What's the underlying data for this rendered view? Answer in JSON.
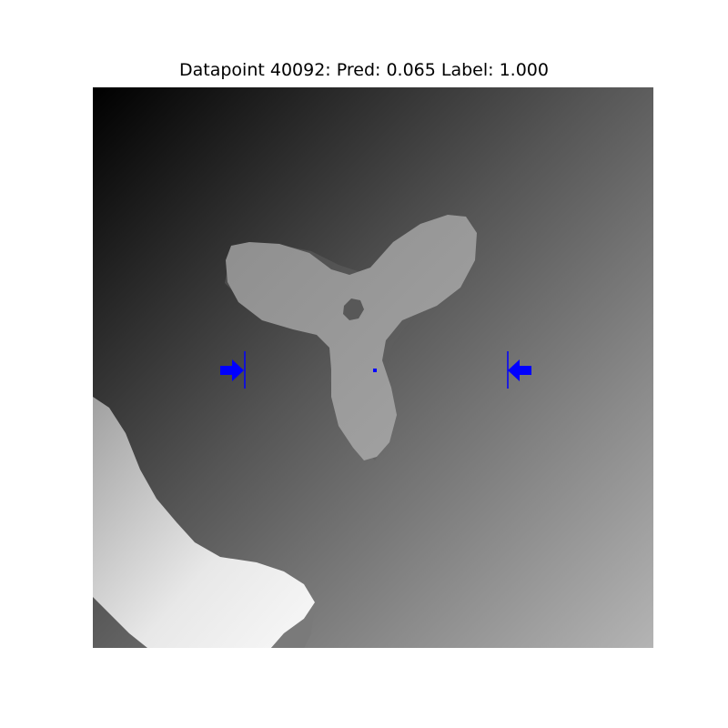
{
  "title": "Datapoint 40092: Pred: 0.065 Label: 1.000",
  "datapoint": 40092,
  "prediction": 0.065,
  "label": 1.0,
  "colors": {
    "background_gradient_dark": "#000000",
    "background_gradient_light": "#b4b4b4",
    "object_gray": "#9a9a9a",
    "gripper_marker": "#0000ff",
    "foreground_object_light": "#f0f0f0"
  }
}
